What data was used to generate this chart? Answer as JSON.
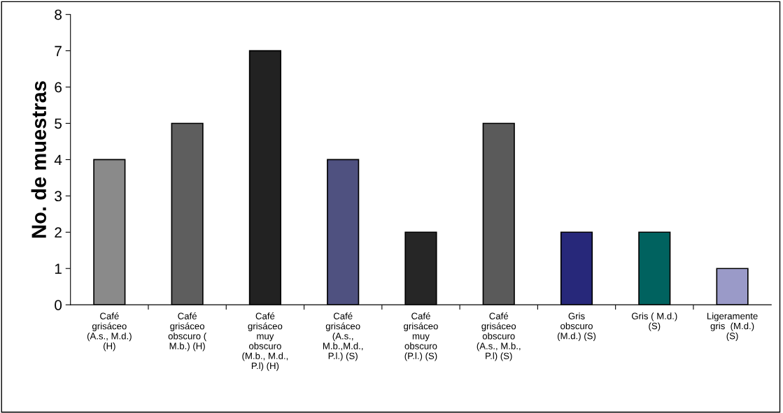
{
  "chart_data": {
    "type": "bar",
    "ylabel": "No. de muestras",
    "categories": [
      "Café\ngrisáceo\n(A.s., M.d.)\n(H)",
      "Café\ngrisáceo\nobscuro (\nM.b.) (H)",
      "Café\ngrisáceo\nmuy\nobscuro\n(M.b., M.d.,\nP.l) (H)",
      "Café\ngrisáceo\n(A.s.,\nM.b.,M.d.,\nP.l.) (S)",
      "Café\ngrisáceo\nmuy\nobscuro\n(P.l.) (S)",
      "Café\ngrisáceo\nobscuro\n(A.s., M.b.,\nP.l) (S)",
      "Gris\nobscuro\n(M.d.) (S)",
      "Gris ( M.d.)\n(S)",
      "Ligeramente\ngris  (M.d.)\n(S)"
    ],
    "values": [
      4,
      5,
      7,
      4,
      2,
      5,
      2,
      2,
      1
    ],
    "colors": [
      "#8a8a8a",
      "#5e5e5e",
      "#222222",
      "#4f5180",
      "#262626",
      "#5a5a5a",
      "#27287a",
      "#00625f",
      "#9a9ac8"
    ],
    "ylim": [
      0,
      8
    ],
    "yticks": [
      0,
      1,
      2,
      3,
      4,
      5,
      6,
      7,
      8
    ],
    "grid": false
  }
}
